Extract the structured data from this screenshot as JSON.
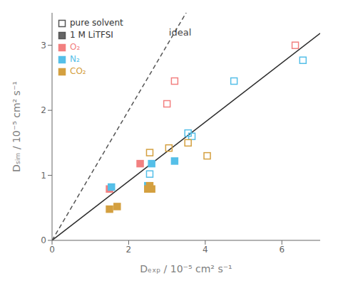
{
  "chart_data": {
    "type": "scatter",
    "xlabel": "Dₑₓₚ / 10⁻⁵ cm² s⁻¹",
    "ylabel": "Dₛᵢₘ / 10⁻⁵ cm² s⁻¹",
    "xlim": [
      0,
      7
    ],
    "ylim": [
      0,
      3.5
    ],
    "xticks": [
      0,
      2,
      4,
      6
    ],
    "yticks": [
      0,
      1,
      2,
      3
    ],
    "legend": "upper left",
    "markers": [
      {
        "name": "pure solvent",
        "marker": "open square"
      },
      {
        "name": "1 M LiTFSI",
        "marker": "filled square"
      }
    ],
    "series": [
      {
        "type": "line",
        "color": "#2a2a2a",
        "line_style": "solid",
        "slope": 0.455
      },
      {
        "type": "line",
        "color": "#555555",
        "line_style": "dashed",
        "slope": 1.0
      },
      {
        "name": "O₂",
        "marker": "open square",
        "color": "#f28080",
        "values": [
          [
            3.0,
            2.1
          ],
          [
            3.2,
            2.45
          ],
          [
            6.35,
            3.0
          ]
        ]
      },
      {
        "name": "O₂",
        "marker": "filled square",
        "color": "#f28080",
        "values": [
          [
            1.5,
            0.79
          ],
          [
            2.3,
            1.18
          ]
        ]
      },
      {
        "name": "N₂",
        "marker": "open square",
        "color": "#55bfe8",
        "values": [
          [
            2.55,
            1.02
          ],
          [
            3.55,
            1.65
          ],
          [
            3.65,
            1.6
          ],
          [
            4.75,
            2.45
          ],
          [
            6.55,
            2.77
          ]
        ]
      },
      {
        "name": "N₂",
        "marker": "filled square",
        "color": "#55bfe8",
        "values": [
          [
            1.55,
            0.82
          ],
          [
            2.5,
            0.84
          ],
          [
            2.6,
            1.18
          ],
          [
            3.2,
            1.22
          ]
        ]
      },
      {
        "name": "CO₂",
        "marker": "open square",
        "color": "#d4a040",
        "values": [
          [
            2.55,
            1.35
          ],
          [
            3.05,
            1.42
          ],
          [
            3.55,
            1.5
          ],
          [
            4.05,
            1.3
          ]
        ]
      },
      {
        "name": "CO₂",
        "marker": "filled square",
        "color": "#d4a040",
        "values": [
          [
            1.5,
            0.48
          ],
          [
            1.7,
            0.52
          ],
          [
            2.5,
            0.79
          ],
          [
            2.55,
            0.84
          ],
          [
            2.6,
            0.79
          ]
        ]
      }
    ],
    "annotations": [
      {
        "text": "ideal",
        "x": 3.05,
        "y": 3.15
      }
    ]
  }
}
